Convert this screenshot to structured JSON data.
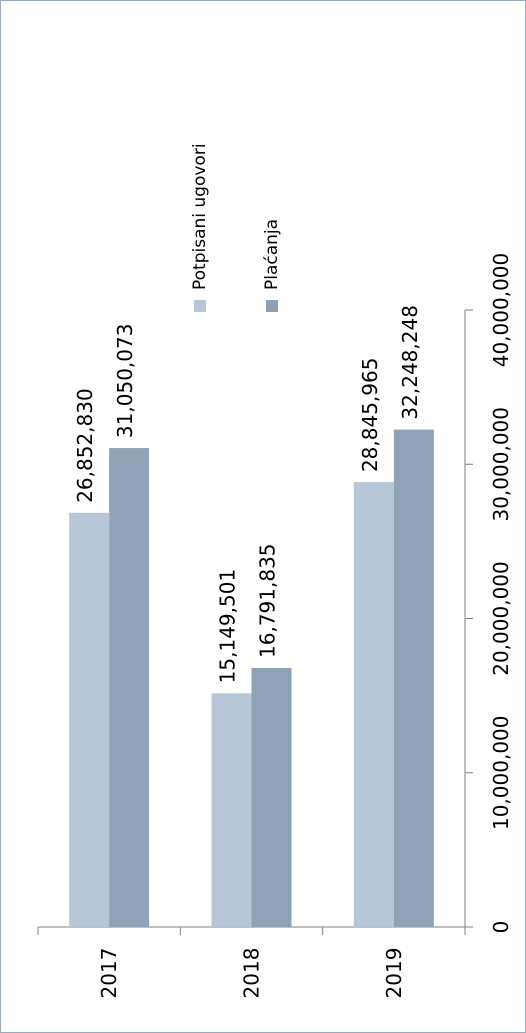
{
  "chart_data": {
    "type": "bar",
    "orientation": "vertical",
    "rotated_page": "90deg-clockwise",
    "categories": [
      "2017",
      "2018",
      "2019"
    ],
    "series": [
      {
        "name": "Potpisani ugovori",
        "color": "#b8c7d7",
        "values": [
          26852830,
          15149501,
          28845965
        ]
      },
      {
        "name": "Plaćanja",
        "color": "#8ea3b6",
        "values": [
          31050073,
          16791835,
          32248248
        ]
      }
    ],
    "data_labels": [
      [
        "26,852,830",
        "15,149,501",
        "28,845,965"
      ],
      [
        "31,050,073",
        "16,791,835",
        "32,248,248"
      ]
    ],
    "y_ticks": [
      0,
      10000000,
      20000000,
      30000000,
      40000000
    ],
    "y_tick_labels": [
      "0",
      "10,000,000",
      "20,000,000",
      "30,000,000",
      "40,000,000"
    ],
    "ylim": [
      0,
      40000000
    ],
    "grid": false,
    "legend_position": "top-right"
  }
}
